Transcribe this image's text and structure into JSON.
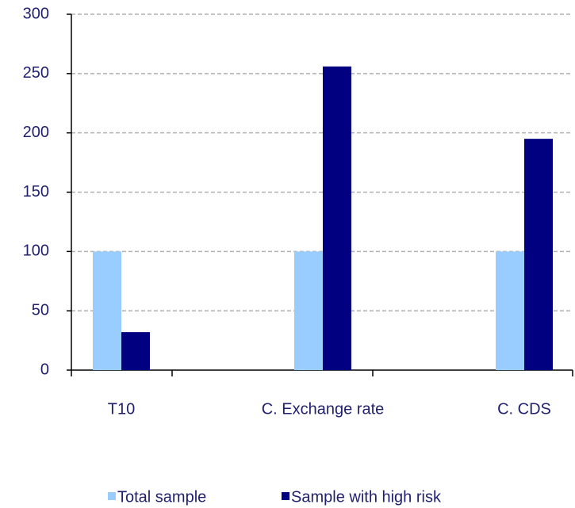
{
  "chart_data": {
    "type": "bar",
    "categories": [
      "T10",
      "C. Exchange rate",
      "C. CDS"
    ],
    "series": [
      {
        "name": "Total sample",
        "color": "#99ccff",
        "values": [
          100,
          100,
          100
        ]
      },
      {
        "name": "Sample with high risk",
        "color": "#000080",
        "values": [
          32,
          256,
          195
        ]
      }
    ],
    "ylim": [
      0,
      300
    ],
    "yticks": [
      0,
      50,
      100,
      150,
      200,
      250,
      300
    ],
    "grid": true,
    "legend": "bottom"
  }
}
